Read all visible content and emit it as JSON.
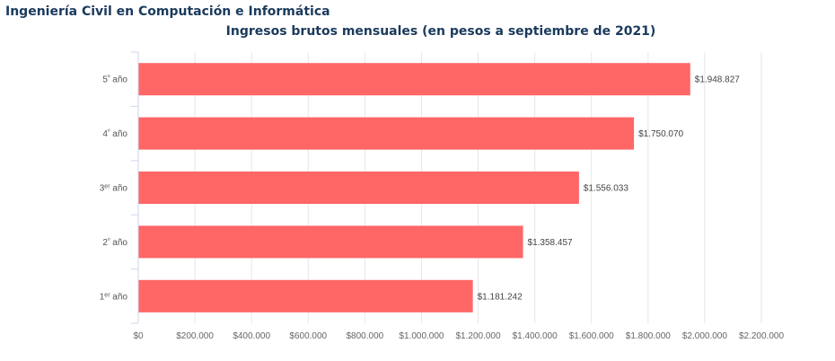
{
  "page": {
    "heading": "Ingeniería Civil en Computación e Informática"
  },
  "chart_data": {
    "type": "bar",
    "orientation": "horizontal",
    "title": "Ingresos brutos mensuales (en pesos a septiembre de 2021)",
    "categories": [
      {
        "base": "5",
        "sup": "º",
        "rest": " año"
      },
      {
        "base": "4",
        "sup": "º",
        "rest": " año"
      },
      {
        "base": "3",
        "sup": "er",
        "rest": " año"
      },
      {
        "base": "2",
        "sup": "º",
        "rest": " año"
      },
      {
        "base": "1",
        "sup": "er",
        "rest": " año"
      }
    ],
    "values": [
      1948827,
      1750070,
      1556033,
      1358457,
      1181242
    ],
    "data_labels": [
      "$1.948.827",
      "$1.750.070",
      "$1.556.033",
      "$1.358.457",
      "$1.181.242"
    ],
    "xlim": [
      0,
      2200000
    ],
    "x_ticks": [
      {
        "value": 0,
        "label": "$0"
      },
      {
        "value": 200000,
        "label": "$200.000"
      },
      {
        "value": 400000,
        "label": "$400.000"
      },
      {
        "value": 600000,
        "label": "$600.000"
      },
      {
        "value": 800000,
        "label": "$800.000"
      },
      {
        "value": 1000000,
        "label": "$1.000.000"
      },
      {
        "value": 1200000,
        "label": "$1.200.000"
      },
      {
        "value": 1400000,
        "label": "$1.400.000"
      },
      {
        "value": 1600000,
        "label": "$1.600.000"
      },
      {
        "value": 1800000,
        "label": "$1.800.000"
      },
      {
        "value": 2000000,
        "label": "$2.000.000"
      },
      {
        "value": 2200000,
        "label": "$2.200.000"
      }
    ],
    "grid": "vertical",
    "legend": "none",
    "colors": {
      "bar": "#ff6666",
      "grid": "#e6e6e6",
      "axis": "#ccd6eb",
      "title": "#1a3a5c"
    }
  }
}
